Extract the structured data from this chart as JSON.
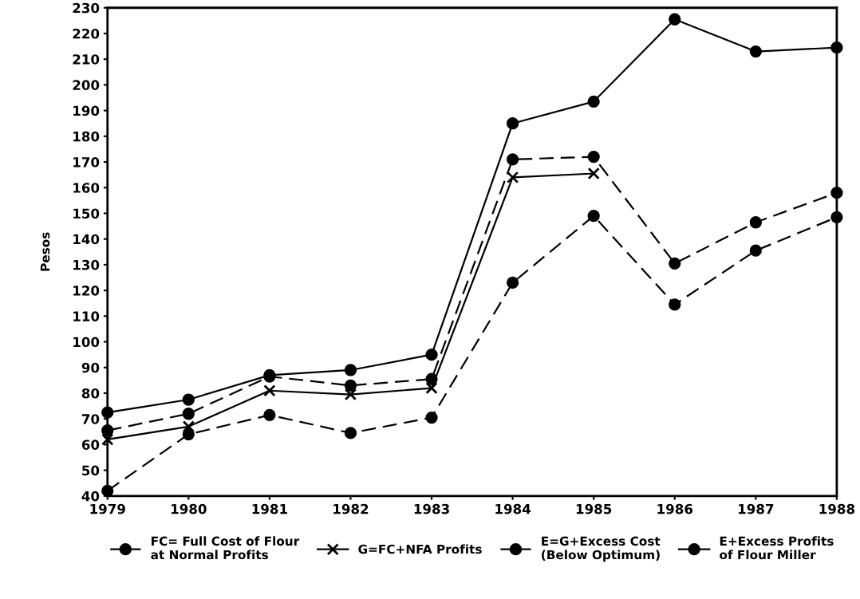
{
  "chart_data": {
    "type": "line",
    "ylabel": "Pesos",
    "x": [
      1979,
      1980,
      1981,
      1982,
      1983,
      1984,
      1985,
      1986,
      1987,
      1988
    ],
    "xlim": [
      1979,
      1988
    ],
    "xticks": [
      1979,
      1980,
      1981,
      1982,
      1983,
      1984,
      1985,
      1986,
      1987,
      1988
    ],
    "ylim": [
      40,
      230
    ],
    "yticks": [
      40,
      50,
      60,
      70,
      80,
      90,
      100,
      110,
      120,
      130,
      140,
      150,
      160,
      170,
      180,
      190,
      200,
      210,
      220,
      230
    ],
    "grid": false,
    "legend": "bottom",
    "series": [
      {
        "name": "FC= Full Cost of Flour\nat Normal Profits",
        "color": "#000000",
        "marker": "circle",
        "line_style": "dashed",
        "values": [
          42,
          64,
          71.5,
          64.5,
          70.5,
          123,
          149,
          114.5,
          135.5,
          148.5
        ]
      },
      {
        "name": "G=FC+NFA Profits",
        "color": "#000000",
        "marker": "cross",
        "line_style": "solid",
        "values": [
          62,
          67,
          81,
          79.5,
          82,
          164,
          165.5,
          null,
          null,
          null
        ]
      },
      {
        "name": "E=G+Excess Cost\n(Below Optimum)",
        "color": "#000000",
        "marker": "circle",
        "line_style": "dashed",
        "values": [
          65.5,
          72,
          86.5,
          83,
          85.5,
          171,
          172,
          130.5,
          146.5,
          158
        ]
      },
      {
        "name": "E+Excess Profits\nof Flour Miller",
        "color": "#000000",
        "marker": "circle",
        "line_style": "solid",
        "values": [
          72.5,
          77.5,
          87,
          89,
          95,
          185,
          193.5,
          225.5,
          213,
          214.5
        ]
      }
    ]
  }
}
